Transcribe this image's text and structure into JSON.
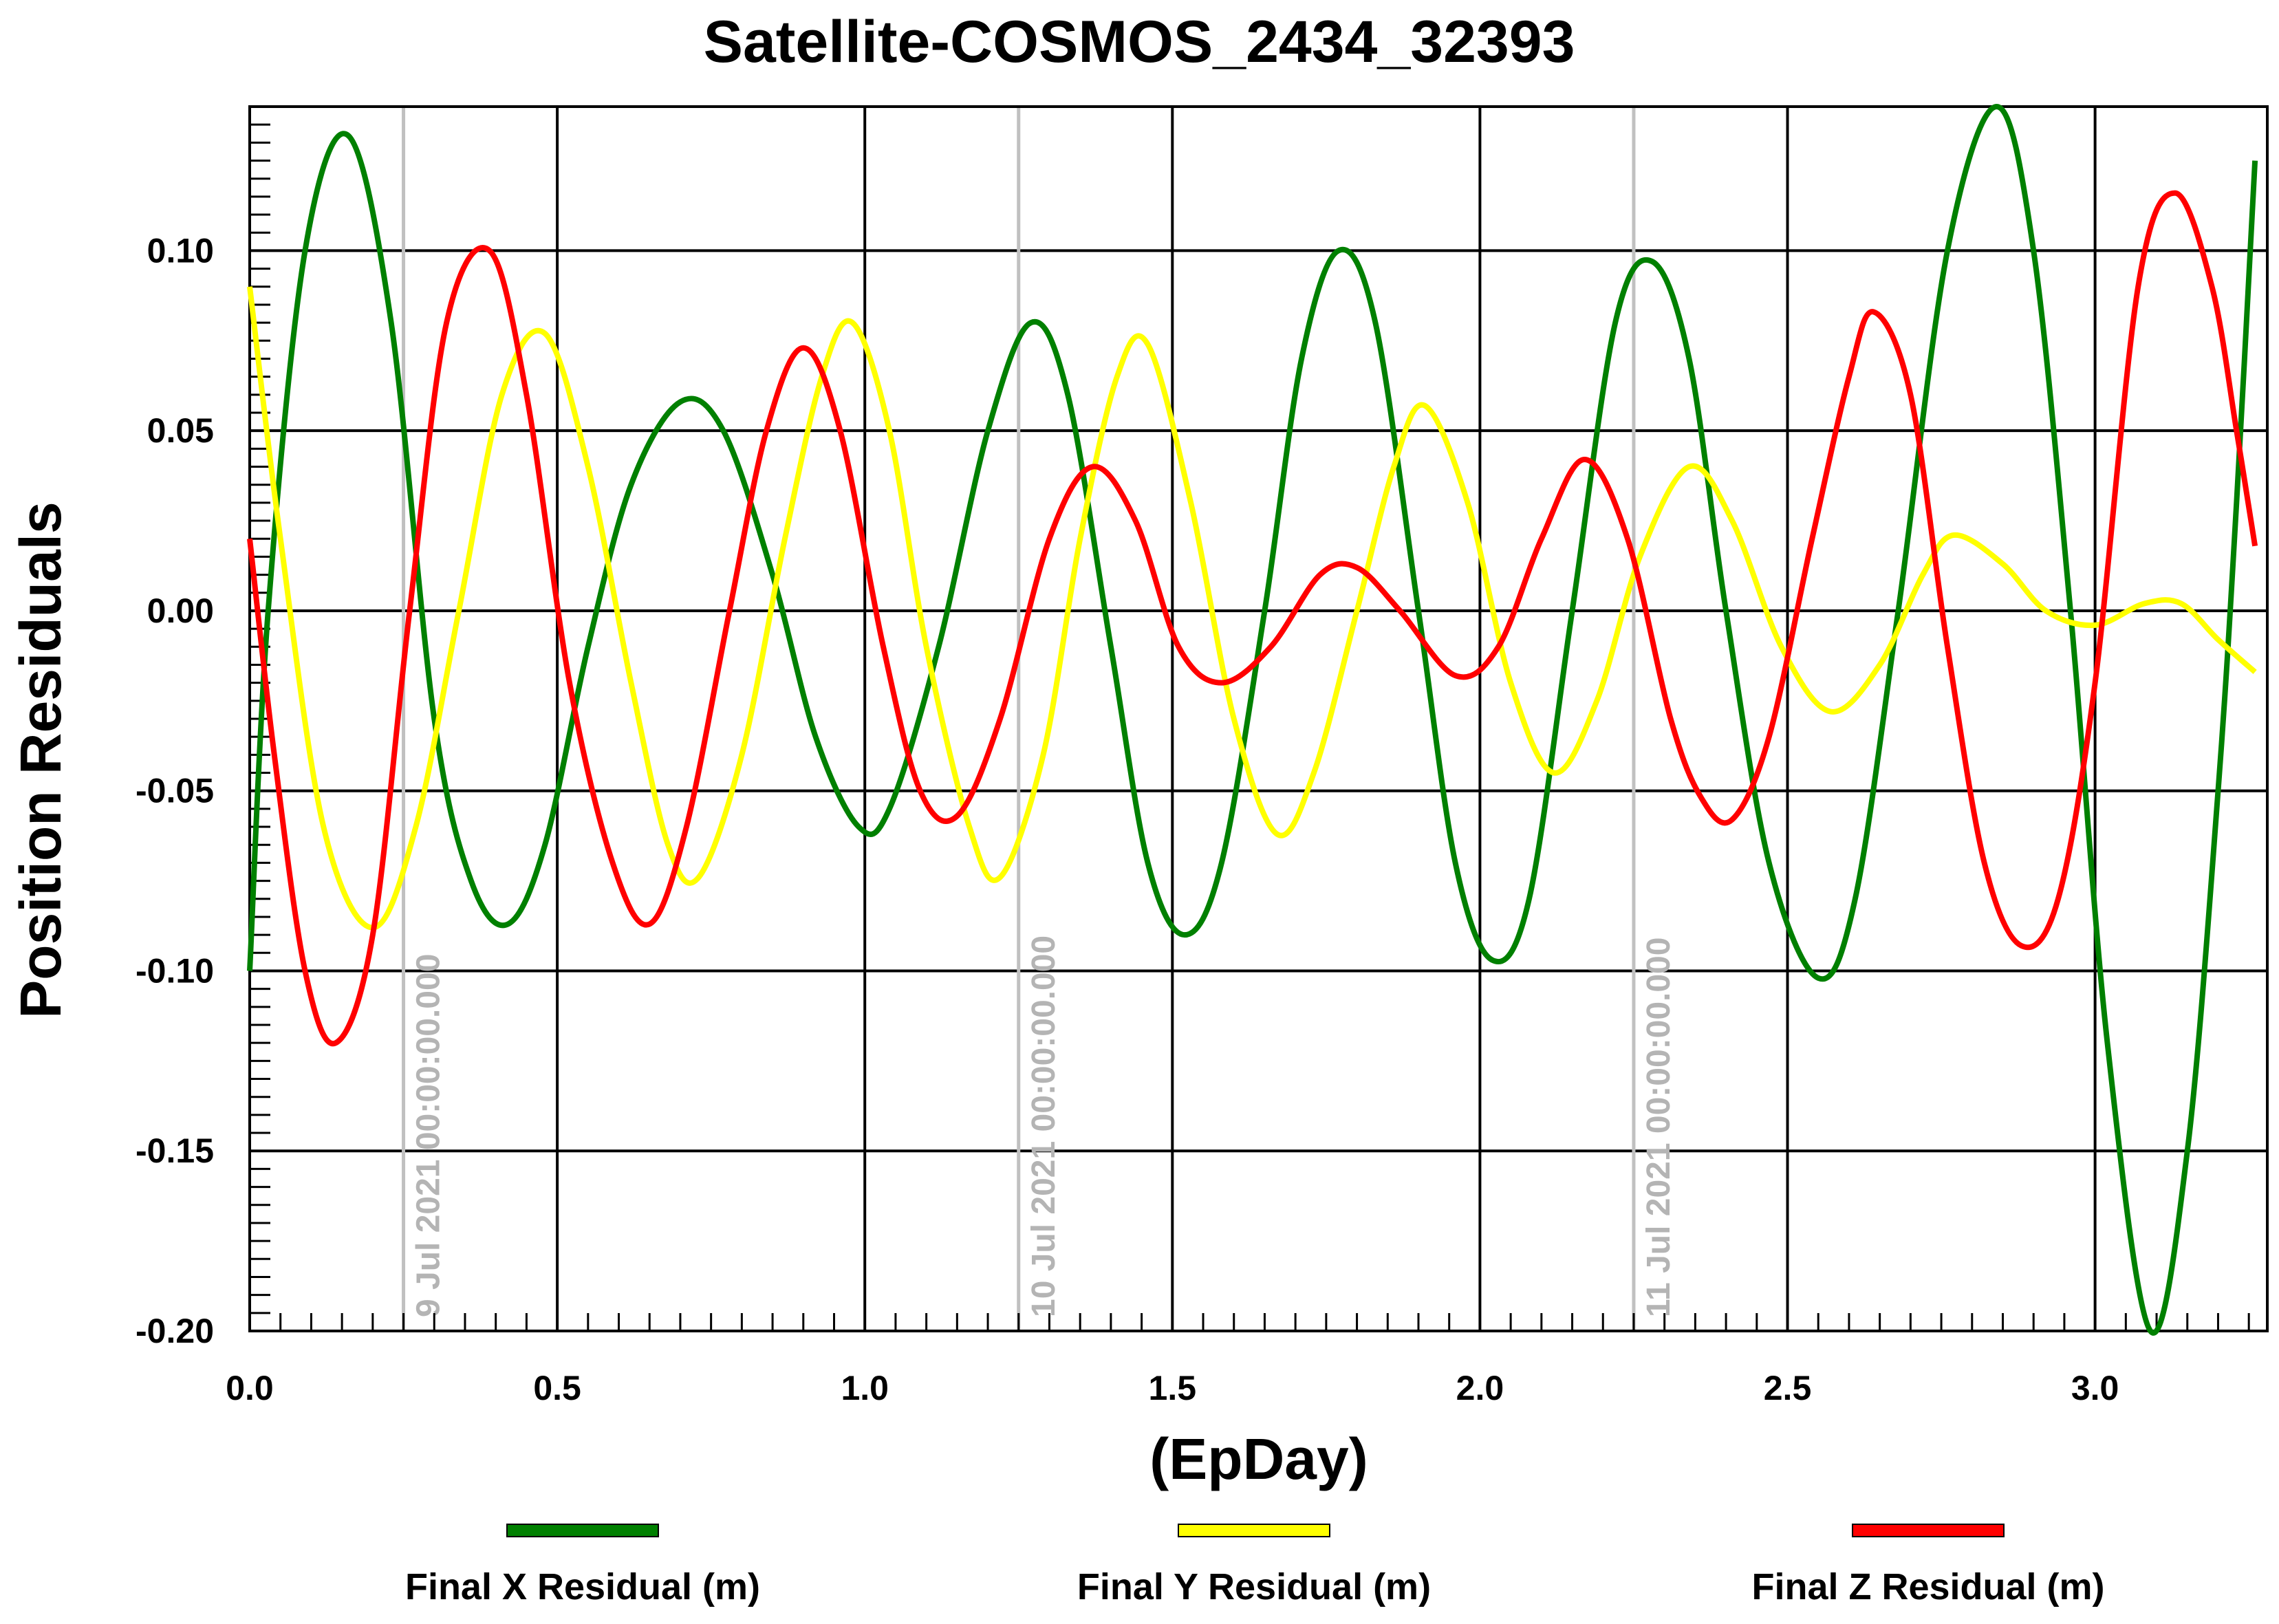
{
  "chart_data": {
    "type": "line",
    "title": "Satellite-COSMOS_2434_32393",
    "xlabel": "(EpDay)",
    "ylabel": "Position Residuals",
    "xlim": [
      0,
      3.28
    ],
    "ylim": [
      -0.2,
      0.14
    ],
    "x_ticks": [
      0.0,
      0.5,
      1.0,
      1.5,
      2.0,
      2.5,
      3.0
    ],
    "x_tick_labels": [
      "0.0",
      "0.5",
      "1.0",
      "1.5",
      "2.0",
      "2.5",
      "3.0"
    ],
    "y_ticks": [
      0.1,
      0.05,
      0.0,
      -0.05,
      -0.1,
      -0.15,
      -0.2
    ],
    "y_tick_labels": [
      "0.10",
      "0.05",
      "0.00",
      "-0.05",
      "-0.10",
      "-0.15",
      "-0.20"
    ],
    "grid": true,
    "legend_position": "bottom",
    "date_markers": [
      {
        "x": 0.25,
        "label": "9 Jul 2021 00:00:00.000"
      },
      {
        "x": 1.25,
        "label": "10 Jul 2021 00:00:00.000"
      },
      {
        "x": 2.25,
        "label": "11 Jul 2021 00:00:00.000"
      }
    ],
    "series": [
      {
        "name": "Final X Residual (m)",
        "color": "#008000",
        "points": [
          [
            0.0,
            -0.1
          ],
          [
            0.03,
            0.0
          ],
          [
            0.09,
            0.1
          ],
          [
            0.16,
            0.132
          ],
          [
            0.23,
            0.08
          ],
          [
            0.3,
            -0.03
          ],
          [
            0.36,
            -0.075
          ],
          [
            0.42,
            -0.087
          ],
          [
            0.48,
            -0.065
          ],
          [
            0.55,
            -0.01
          ],
          [
            0.62,
            0.035
          ],
          [
            0.7,
            0.058
          ],
          [
            0.77,
            0.05
          ],
          [
            0.85,
            0.01
          ],
          [
            0.92,
            -0.035
          ],
          [
            0.99,
            -0.06
          ],
          [
            1.04,
            -0.055
          ],
          [
            1.12,
            -0.01
          ],
          [
            1.2,
            0.05
          ],
          [
            1.27,
            0.08
          ],
          [
            1.33,
            0.06
          ],
          [
            1.4,
            -0.01
          ],
          [
            1.46,
            -0.07
          ],
          [
            1.52,
            -0.09
          ],
          [
            1.58,
            -0.07
          ],
          [
            1.65,
            0.0
          ],
          [
            1.71,
            0.07
          ],
          [
            1.77,
            0.1
          ],
          [
            1.83,
            0.08
          ],
          [
            1.9,
            0.0
          ],
          [
            1.96,
            -0.07
          ],
          [
            2.02,
            -0.097
          ],
          [
            2.08,
            -0.08
          ],
          [
            2.15,
            0.0
          ],
          [
            2.22,
            0.08
          ],
          [
            2.28,
            0.097
          ],
          [
            2.34,
            0.07
          ],
          [
            2.4,
            0.0
          ],
          [
            2.47,
            -0.07
          ],
          [
            2.55,
            -0.102
          ],
          [
            2.61,
            -0.08
          ],
          [
            2.68,
            0.0
          ],
          [
            2.76,
            0.1
          ],
          [
            2.84,
            0.14
          ],
          [
            2.9,
            0.1
          ],
          [
            2.96,
            0.0
          ],
          [
            3.02,
            -0.12
          ],
          [
            3.09,
            -0.2
          ],
          [
            3.15,
            -0.15
          ],
          [
            3.2,
            -0.05
          ],
          [
            3.23,
            0.03
          ],
          [
            3.26,
            0.125
          ]
        ]
      },
      {
        "name": "Final Y Residual (m)",
        "color": "#ffff00",
        "points": [
          [
            0.0,
            0.09
          ],
          [
            0.05,
            0.02
          ],
          [
            0.12,
            -0.06
          ],
          [
            0.2,
            -0.088
          ],
          [
            0.27,
            -0.06
          ],
          [
            0.34,
            0.0
          ],
          [
            0.41,
            0.06
          ],
          [
            0.48,
            0.077
          ],
          [
            0.55,
            0.04
          ],
          [
            0.62,
            -0.02
          ],
          [
            0.68,
            -0.065
          ],
          [
            0.73,
            -0.074
          ],
          [
            0.8,
            -0.04
          ],
          [
            0.87,
            0.02
          ],
          [
            0.93,
            0.065
          ],
          [
            0.98,
            0.08
          ],
          [
            1.04,
            0.05
          ],
          [
            1.1,
            -0.01
          ],
          [
            1.17,
            -0.06
          ],
          [
            1.22,
            -0.074
          ],
          [
            1.29,
            -0.04
          ],
          [
            1.35,
            0.02
          ],
          [
            1.41,
            0.065
          ],
          [
            1.46,
            0.074
          ],
          [
            1.53,
            0.03
          ],
          [
            1.6,
            -0.03
          ],
          [
            1.67,
            -0.062
          ],
          [
            1.73,
            -0.045
          ],
          [
            1.8,
            0.0
          ],
          [
            1.86,
            0.04
          ],
          [
            1.91,
            0.057
          ],
          [
            1.98,
            0.03
          ],
          [
            2.05,
            -0.02
          ],
          [
            2.12,
            -0.045
          ],
          [
            2.19,
            -0.025
          ],
          [
            2.26,
            0.015
          ],
          [
            2.34,
            0.04
          ],
          [
            2.41,
            0.025
          ],
          [
            2.49,
            -0.01
          ],
          [
            2.57,
            -0.028
          ],
          [
            2.65,
            -0.015
          ],
          [
            2.72,
            0.01
          ],
          [
            2.77,
            0.021
          ],
          [
            2.85,
            0.013
          ],
          [
            2.92,
            0.0
          ],
          [
            3.0,
            -0.004
          ],
          [
            3.08,
            0.002
          ],
          [
            3.14,
            0.002
          ],
          [
            3.2,
            -0.008
          ],
          [
            3.26,
            -0.017
          ]
        ]
      },
      {
        "name": "Final Z Residual (m)",
        "color": "#ff0000",
        "points": [
          [
            0.0,
            0.02
          ],
          [
            0.04,
            -0.04
          ],
          [
            0.09,
            -0.1
          ],
          [
            0.14,
            -0.12
          ],
          [
            0.2,
            -0.09
          ],
          [
            0.26,
            0.0
          ],
          [
            0.32,
            0.08
          ],
          [
            0.39,
            0.1
          ],
          [
            0.45,
            0.06
          ],
          [
            0.52,
            -0.02
          ],
          [
            0.59,
            -0.07
          ],
          [
            0.65,
            -0.087
          ],
          [
            0.71,
            -0.06
          ],
          [
            0.78,
            0.0
          ],
          [
            0.84,
            0.05
          ],
          [
            0.9,
            0.073
          ],
          [
            0.96,
            0.05
          ],
          [
            1.03,
            -0.01
          ],
          [
            1.09,
            -0.05
          ],
          [
            1.15,
            -0.057
          ],
          [
            1.22,
            -0.03
          ],
          [
            1.3,
            0.02
          ],
          [
            1.37,
            0.04
          ],
          [
            1.44,
            0.025
          ],
          [
            1.51,
            -0.01
          ],
          [
            1.58,
            -0.02
          ],
          [
            1.66,
            -0.01
          ],
          [
            1.74,
            0.01
          ],
          [
            1.8,
            0.012
          ],
          [
            1.87,
            0.0
          ],
          [
            1.96,
            -0.018
          ],
          [
            2.03,
            -0.01
          ],
          [
            2.1,
            0.02
          ],
          [
            2.17,
            0.042
          ],
          [
            2.24,
            0.02
          ],
          [
            2.31,
            -0.03
          ],
          [
            2.36,
            -0.052
          ],
          [
            2.41,
            -0.058
          ],
          [
            2.47,
            -0.035
          ],
          [
            2.54,
            0.02
          ],
          [
            2.6,
            0.065
          ],
          [
            2.64,
            0.083
          ],
          [
            2.7,
            0.06
          ],
          [
            2.76,
            -0.01
          ],
          [
            2.82,
            -0.07
          ],
          [
            2.88,
            -0.093
          ],
          [
            2.94,
            -0.08
          ],
          [
            3.0,
            -0.02
          ],
          [
            3.07,
            0.09
          ],
          [
            3.13,
            0.116
          ],
          [
            3.19,
            0.09
          ],
          [
            3.23,
            0.05
          ],
          [
            3.26,
            0.018
          ]
        ]
      }
    ]
  }
}
